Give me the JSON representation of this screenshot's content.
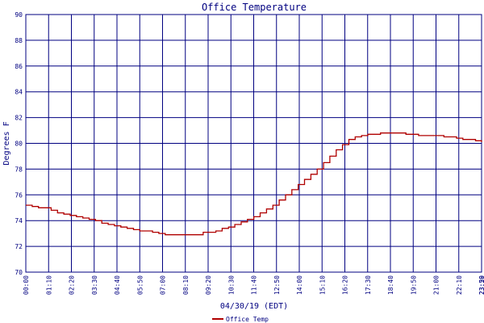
{
  "chart_data": {
    "type": "line",
    "title": "Office Temperature",
    "xlabel": "04/30/19 (EDT)",
    "ylabel": "Degrees F",
    "ylim": [
      70,
      90
    ],
    "yticks": [
      "70",
      "72",
      "74",
      "76",
      "78",
      "80",
      "82",
      "84",
      "86",
      "88",
      "90"
    ],
    "xticks": [
      "00:00",
      "01:10",
      "02:20",
      "03:30",
      "04:40",
      "05:50",
      "07:00",
      "08:10",
      "09:20",
      "10:30",
      "11:40",
      "12:50",
      "14:00",
      "15:10",
      "16:20",
      "17:30",
      "18:40",
      "19:50",
      "21:00",
      "22:10",
      "23:20",
      "23:59"
    ],
    "grid": true,
    "legend_position": "bottom-left",
    "colors": {
      "grid": "#000080",
      "axis_text": "#000080",
      "series": "#b00000"
    },
    "series": [
      {
        "name": "Office Temp",
        "x": [
          0,
          10,
          20,
          30,
          40,
          50,
          60,
          80,
          100,
          120,
          140,
          160,
          180,
          200,
          220,
          240,
          260,
          280,
          300,
          320,
          340,
          360,
          380,
          400,
          420,
          440,
          460,
          480,
          500,
          520,
          540,
          560,
          580,
          600,
          620,
          640,
          660,
          680,
          700,
          720,
          740,
          760,
          780,
          800,
          820,
          840,
          860,
          880,
          900,
          920,
          940,
          960,
          980,
          1000,
          1020,
          1040,
          1060,
          1080,
          1100,
          1120,
          1140,
          1160,
          1180,
          1200,
          1220,
          1240,
          1260,
          1280,
          1300,
          1320,
          1340,
          1360,
          1380,
          1400,
          1420,
          1439
        ],
        "y": [
          75.2,
          75.2,
          75.1,
          75.1,
          75.0,
          75.0,
          75.0,
          74.8,
          74.6,
          74.5,
          74.4,
          74.3,
          74.2,
          74.1,
          74.0,
          73.8,
          73.7,
          73.6,
          73.5,
          73.4,
          73.3,
          73.2,
          73.2,
          73.1,
          73.0,
          72.9,
          72.9,
          72.9,
          72.9,
          72.9,
          72.9,
          73.1,
          73.1,
          73.2,
          73.4,
          73.5,
          73.7,
          73.9,
          74.1,
          74.3,
          74.6,
          74.9,
          75.2,
          75.6,
          76.0,
          76.4,
          76.8,
          77.2,
          77.6,
          78.0,
          78.5,
          79.0,
          79.5,
          79.9,
          80.3,
          80.5,
          80.6,
          80.7,
          80.7,
          80.8,
          80.8,
          80.8,
          80.8,
          80.7,
          80.7,
          80.6,
          80.6,
          80.6,
          80.6,
          80.5,
          80.5,
          80.4,
          80.3,
          80.3,
          80.2,
          80.1
        ]
      }
    ]
  }
}
